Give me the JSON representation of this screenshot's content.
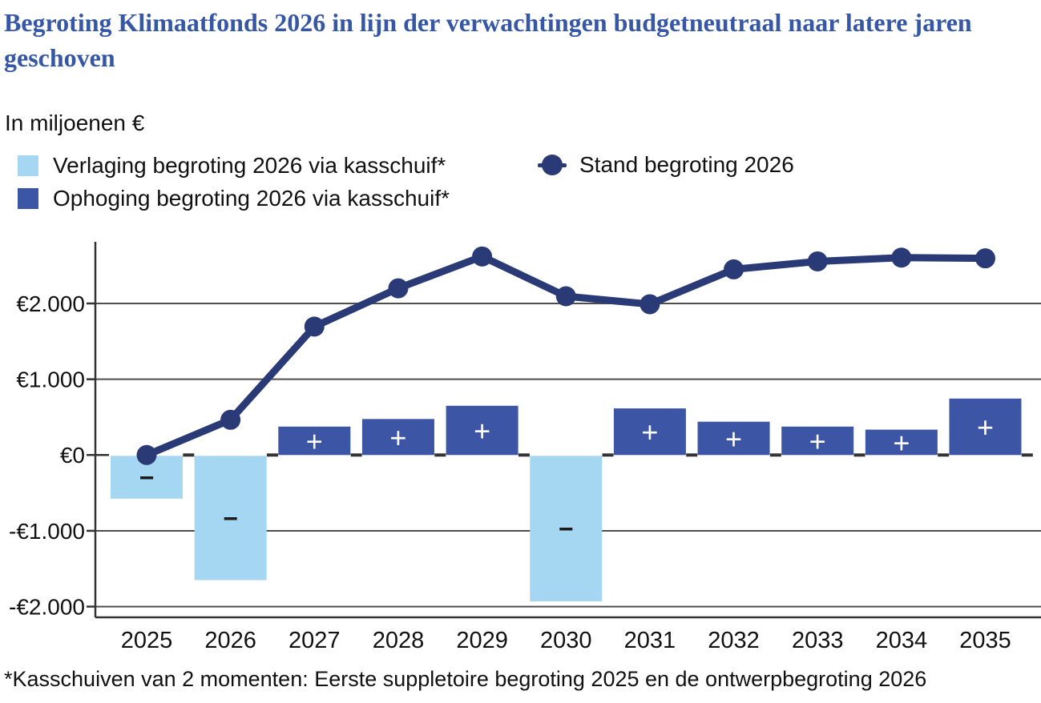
{
  "title": "Begroting Klimaatfonds 2026 in lijn der verwachtingen budgetneutraal naar latere jaren geschoven",
  "subtitle": "In miljoenen €",
  "legend": {
    "items": [
      {
        "id": "verlaging",
        "label": "Verlaging begroting 2026 via kasschuif*",
        "marker": "square",
        "color": "#a5d7f3"
      },
      {
        "id": "ophoging",
        "label": "Ophoging begroting 2026 via kasschuif*",
        "marker": "square",
        "color": "#3c55a5"
      },
      {
        "id": "stand",
        "label": "Stand begroting 2026",
        "marker": "line-dot",
        "color": "#2a3a76"
      }
    ]
  },
  "footnote": "*Kasschuiven van 2 momenten: Eerste suppletoire begroting 2025 en de ontwerpbegroting 2026",
  "chart_data": {
    "type": "bar",
    "subtype": "bar-and-line combo",
    "unit": "miljoenen €",
    "categories": [
      "2025",
      "2026",
      "2027",
      "2028",
      "2029",
      "2030",
      "2031",
      "2032",
      "2033",
      "2034",
      "2035"
    ],
    "series": [
      {
        "name": "Verlaging begroting 2026 via kasschuif*",
        "type": "bar",
        "color": "#a5d7f3",
        "sign_label": "−",
        "values": [
          -565,
          -1640,
          null,
          null,
          null,
          -1920,
          null,
          null,
          null,
          null,
          null
        ]
      },
      {
        "name": "Ophoging begroting 2026 via kasschuif*",
        "type": "bar",
        "color": "#3c55a5",
        "sign_label": "+",
        "values": [
          null,
          null,
          375,
          475,
          650,
          null,
          615,
          440,
          375,
          335,
          745
        ]
      },
      {
        "name": "Stand begroting 2026",
        "type": "line",
        "color": "#2a3a76",
        "values": [
          0,
          465,
          1695,
          2200,
          2620,
          2095,
          1990,
          2450,
          2555,
          2605,
          2595
        ]
      }
    ],
    "y_axis": {
      "ticks": [
        {
          "label": "€2.000",
          "value": 2000
        },
        {
          "label": "€1.000",
          "value": 1000
        },
        {
          "label": "€0",
          "value": 0
        },
        {
          "label": "-€1.000",
          "value": -1000
        },
        {
          "label": "-€2.000",
          "value": -2000
        }
      ],
      "gridline_values": [
        2000,
        1000,
        -1000,
        -2000
      ],
      "ylim": [
        -2150,
        2815
      ]
    },
    "legend_position": "top-left",
    "grid": "horizontal only",
    "colors": {
      "grid": "#4d4d4d",
      "axis": "#333333",
      "text": "#111111",
      "title": "#3657a6",
      "bar_sign_positive": "#ffffff",
      "bar_sign_negative": "#1a1a1a"
    }
  }
}
